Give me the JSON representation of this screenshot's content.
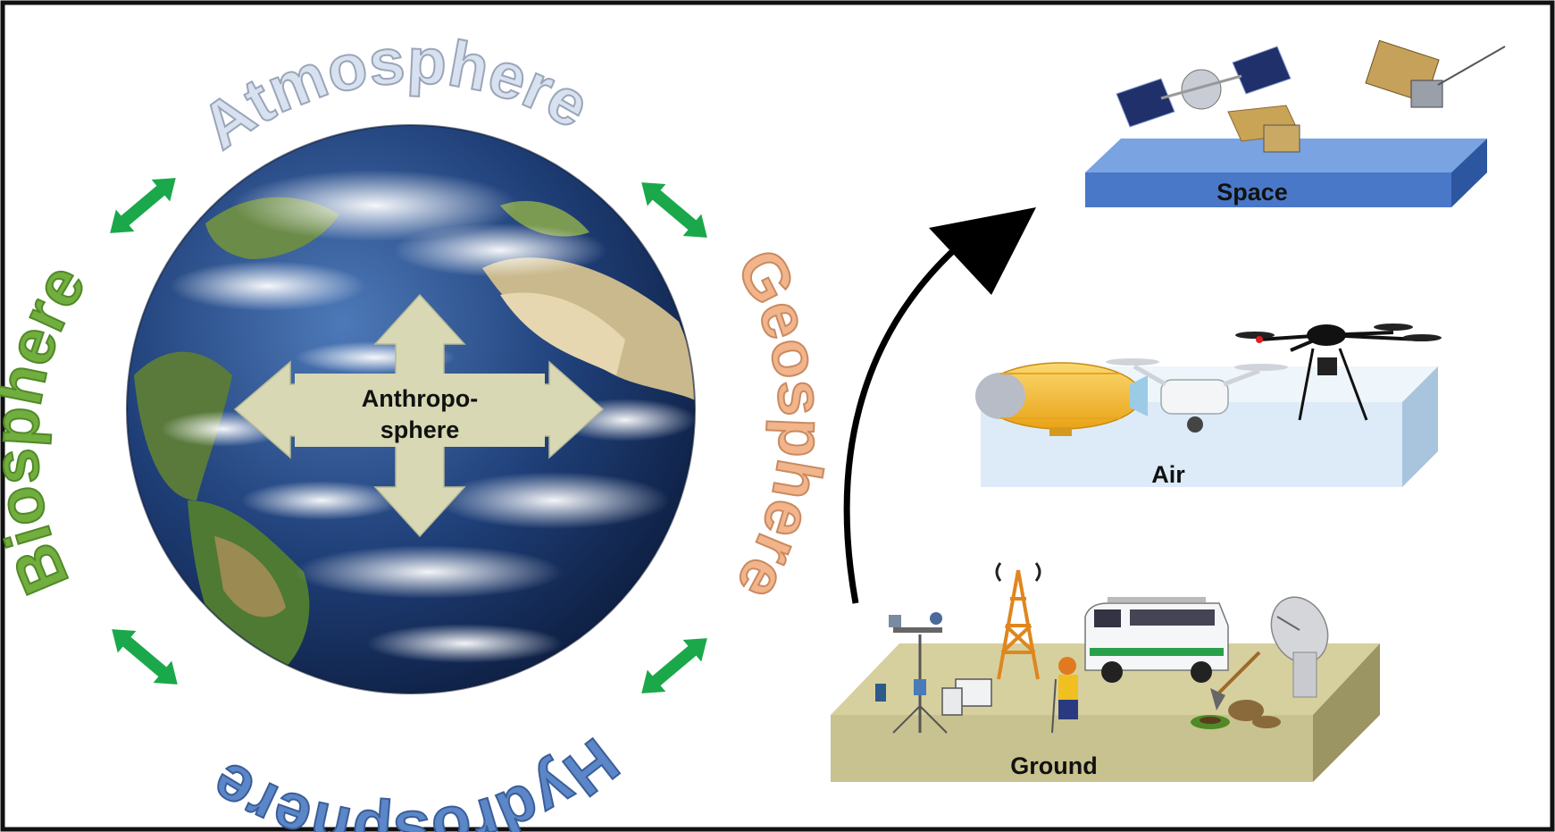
{
  "spheres": {
    "atmosphere": "Atmosphere",
    "geosphere": "Geosphere",
    "hydrosphere": "Hydrosphere",
    "biosphere": "Biosphere",
    "anthroposphere_line1": "Anthropo-",
    "anthroposphere_line2": "sphere"
  },
  "platforms": {
    "space": "Space",
    "air": "Air",
    "ground": "Ground"
  },
  "colors": {
    "atmosphere": "#d7e1f0",
    "geosphere": "#f2b48a",
    "hydrosphere": "#5b86c8",
    "biosphere": "#72ad3f",
    "cycle_arrow": "#1aa84a",
    "cross_arrow": "#d8d8b4",
    "space_platform": "#4a78c8",
    "air_platform": "#dcebf7",
    "ground_platform": "#c7c28f"
  }
}
